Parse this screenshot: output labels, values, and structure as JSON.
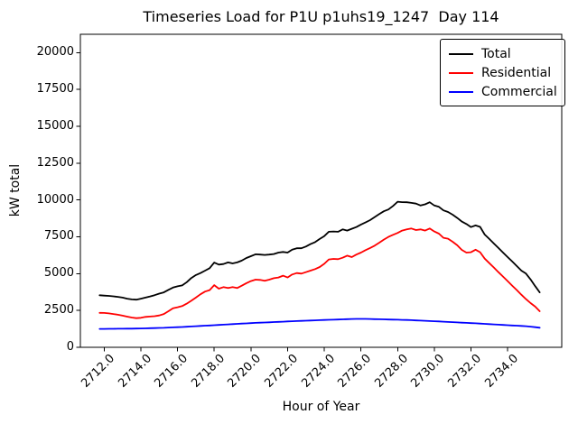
{
  "chart_data": {
    "type": "line",
    "title": "Timeseries Load for P1U p1uhs19_1247  Day 114",
    "xlabel": "Hour of Year",
    "ylabel": "kW total",
    "legend_position": "upper right",
    "grid": false,
    "xlim": [
      2710.7,
      2736.95
    ],
    "ylim": [
      0,
      21240
    ],
    "xticks": [
      2712,
      2714,
      2716,
      2718,
      2720,
      2722,
      2724,
      2726,
      2728,
      2730,
      2732,
      2734
    ],
    "xtick_labels": [
      "2712.0",
      "2714.0",
      "2716.0",
      "2718.0",
      "2720.0",
      "2722.0",
      "2724.0",
      "2726.0",
      "2728.0",
      "2730.0",
      "2732.0",
      "2734.0"
    ],
    "yticks": [
      0,
      2500,
      5000,
      7500,
      10000,
      12500,
      15000,
      17500,
      20000
    ],
    "ytick_labels": [
      "0",
      "2500",
      "5000",
      "7500",
      "10000",
      "12500",
      "15000",
      "17500",
      "20000"
    ],
    "x": [
      2711.75,
      2712,
      2712.25,
      2712.5,
      2712.75,
      2713,
      2713.25,
      2713.5,
      2713.75,
      2714,
      2714.25,
      2714.5,
      2714.75,
      2715,
      2715.25,
      2715.5,
      2715.75,
      2716,
      2716.25,
      2716.5,
      2716.75,
      2717,
      2717.25,
      2717.5,
      2717.75,
      2718,
      2718.25,
      2718.5,
      2718.75,
      2719,
      2719.25,
      2719.5,
      2719.75,
      2720,
      2720.25,
      2720.5,
      2720.75,
      2721,
      2721.25,
      2721.5,
      2721.75,
      2722,
      2722.25,
      2722.5,
      2722.75,
      2723,
      2723.25,
      2723.5,
      2723.75,
      2724,
      2724.25,
      2724.5,
      2724.75,
      2725,
      2725.25,
      2725.5,
      2725.75,
      2726,
      2726.25,
      2726.5,
      2726.75,
      2727,
      2727.25,
      2727.5,
      2727.75,
      2728,
      2728.25,
      2728.5,
      2728.75,
      2729,
      2729.25,
      2729.5,
      2729.75,
      2730,
      2730.25,
      2730.5,
      2730.75,
      2731,
      2731.25,
      2731.5,
      2731.75,
      2732,
      2732.25,
      2732.5,
      2732.75,
      2733,
      2733.25,
      2733.5,
      2733.75,
      2734,
      2734.25,
      2734.5,
      2734.75,
      2735,
      2735.25,
      2735.5,
      2735.75
    ],
    "series": [
      {
        "name": "Total",
        "color": "#000000",
        "values": [
          3530,
          3510,
          3490,
          3460,
          3420,
          3370,
          3300,
          3250,
          3230,
          3300,
          3370,
          3450,
          3540,
          3640,
          3730,
          3900,
          4050,
          4140,
          4200,
          4420,
          4700,
          4900,
          5040,
          5200,
          5370,
          5750,
          5610,
          5650,
          5760,
          5690,
          5760,
          5880,
          6060,
          6180,
          6310,
          6290,
          6270,
          6290,
          6330,
          6430,
          6470,
          6430,
          6630,
          6720,
          6720,
          6840,
          7000,
          7140,
          7350,
          7550,
          7840,
          7860,
          7840,
          8000,
          7920,
          8040,
          8160,
          8330,
          8470,
          8630,
          8840,
          9040,
          9230,
          9350,
          9590,
          9880,
          9850,
          9840,
          9800,
          9750,
          9620,
          9700,
          9840,
          9620,
          9530,
          9290,
          9180,
          9000,
          8780,
          8530,
          8370,
          8160,
          8270,
          8170,
          7650,
          7350,
          7040,
          6740,
          6430,
          6120,
          5820,
          5510,
          5200,
          5000,
          4600,
          4150,
          3730
        ]
      },
      {
        "name": "Residential",
        "color": "#ff0000",
        "values": [
          2340,
          2330,
          2300,
          2260,
          2210,
          2150,
          2080,
          2020,
          1980,
          2000,
          2060,
          2090,
          2110,
          2160,
          2260,
          2450,
          2650,
          2720,
          2800,
          2960,
          3160,
          3370,
          3600,
          3780,
          3880,
          4220,
          3980,
          4080,
          4020,
          4080,
          4020,
          4180,
          4350,
          4490,
          4590,
          4570,
          4510,
          4590,
          4690,
          4740,
          4860,
          4740,
          4940,
          5040,
          5000,
          5100,
          5200,
          5310,
          5450,
          5670,
          5960,
          6000,
          5980,
          6080,
          6220,
          6120,
          6290,
          6430,
          6590,
          6740,
          6900,
          7100,
          7310,
          7490,
          7630,
          7760,
          7920,
          8000,
          8060,
          7960,
          8000,
          7920,
          8060,
          7860,
          7710,
          7430,
          7370,
          7160,
          6920,
          6610,
          6430,
          6450,
          6620,
          6450,
          6020,
          5710,
          5410,
          5100,
          4800,
          4490,
          4180,
          3880,
          3570,
          3270,
          3000,
          2760,
          2450
        ]
      },
      {
        "name": "Commercial",
        "color": "#0000ff",
        "values": [
          1250,
          1250,
          1252,
          1255,
          1258,
          1262,
          1266,
          1270,
          1275,
          1280,
          1288,
          1296,
          1305,
          1315,
          1325,
          1338,
          1350,
          1365,
          1380,
          1395,
          1412,
          1430,
          1448,
          1466,
          1484,
          1502,
          1520,
          1538,
          1556,
          1574,
          1592,
          1608,
          1624,
          1640,
          1656,
          1670,
          1684,
          1698,
          1712,
          1726,
          1740,
          1754,
          1768,
          1780,
          1792,
          1804,
          1816,
          1828,
          1840,
          1852,
          1864,
          1876,
          1888,
          1900,
          1912,
          1922,
          1930,
          1930,
          1926,
          1920,
          1912,
          1904,
          1896,
          1888,
          1880,
          1872,
          1862,
          1852,
          1840,
          1826,
          1812,
          1798,
          1784,
          1770,
          1754,
          1738,
          1722,
          1706,
          1690,
          1674,
          1658,
          1642,
          1626,
          1610,
          1592,
          1574,
          1556,
          1538,
          1520,
          1502,
          1484,
          1466,
          1448,
          1430,
          1404,
          1368,
          1330
        ]
      }
    ]
  }
}
